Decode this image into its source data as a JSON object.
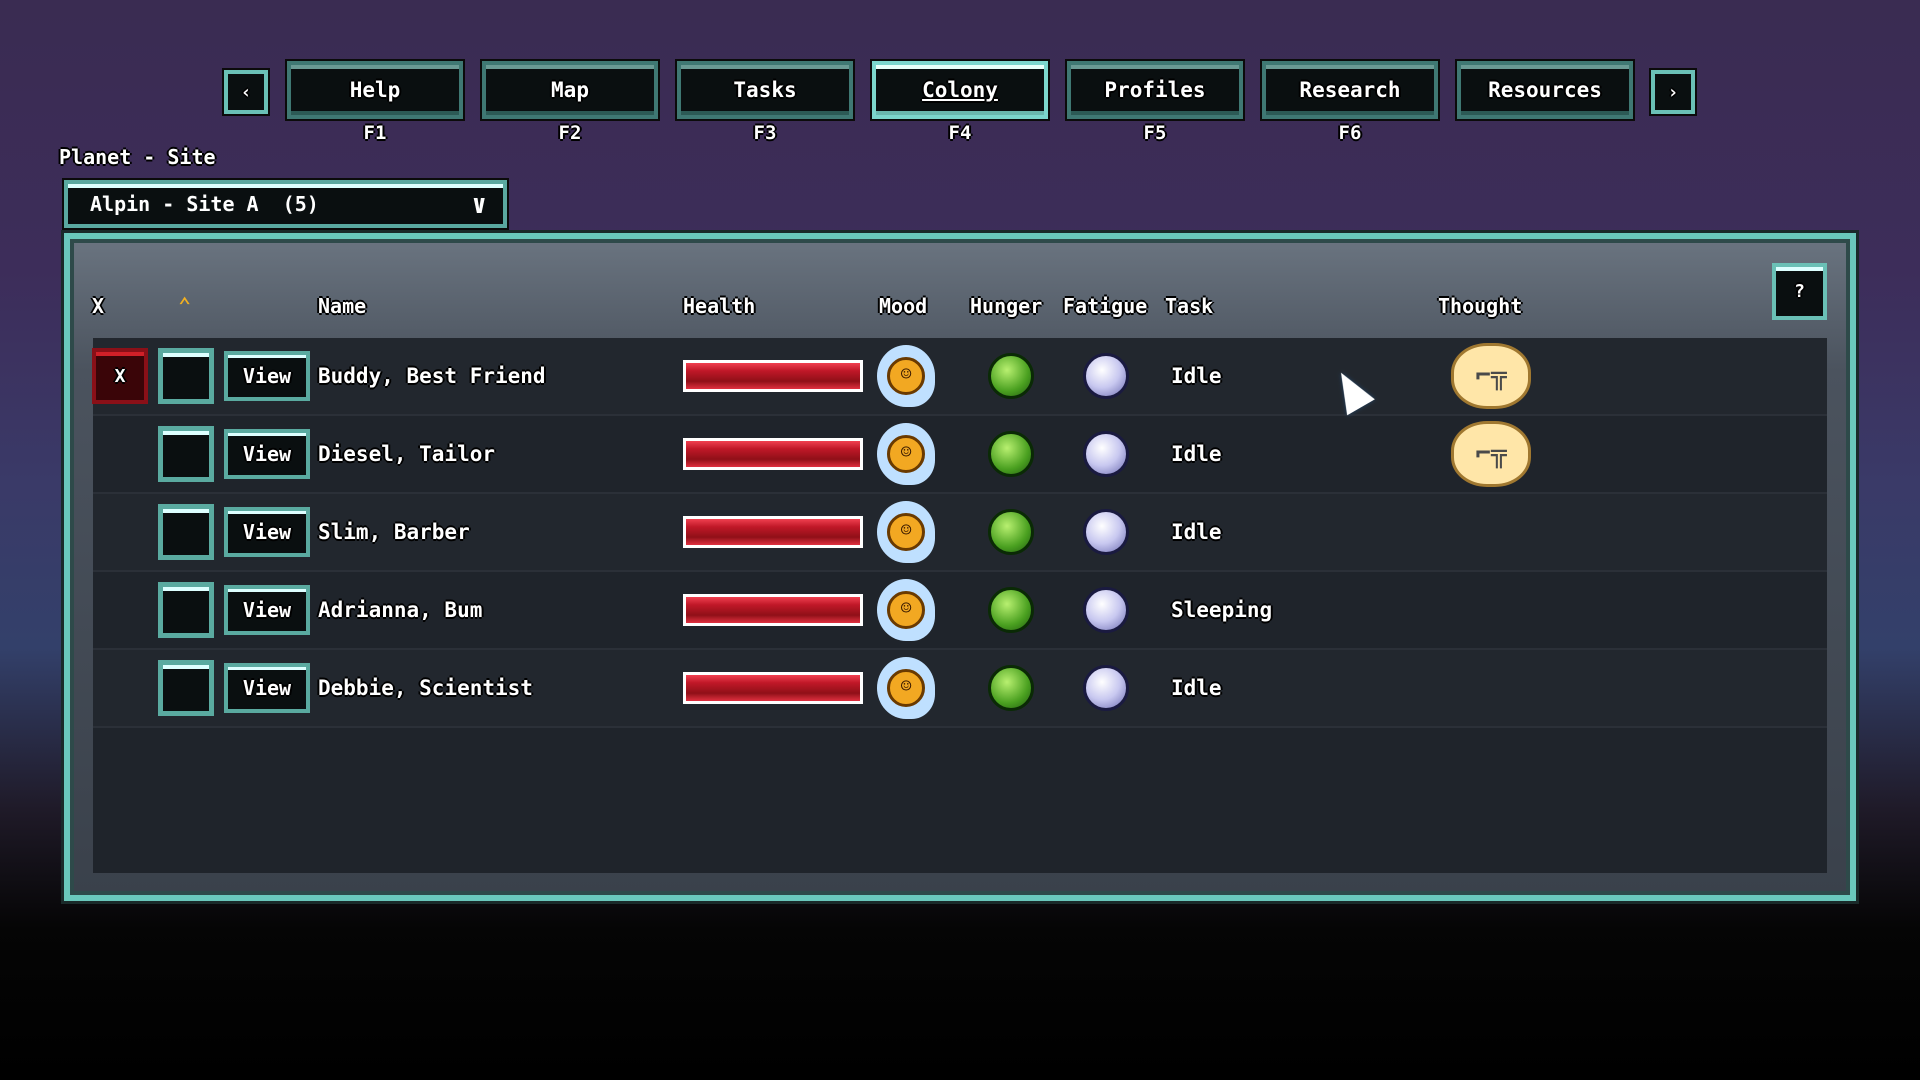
{
  "nav": {
    "prev_icon": "chevron-left-icon",
    "next_icon": "chevron-right-icon",
    "tabs": [
      {
        "label": "Help",
        "key": "F1"
      },
      {
        "label": "Map",
        "key": "F2"
      },
      {
        "label": "Tasks",
        "key": "F3"
      },
      {
        "label": "Colony",
        "key": "F4",
        "active": true
      },
      {
        "label": "Profiles",
        "key": "F5"
      },
      {
        "label": "Research",
        "key": "F6"
      },
      {
        "label": "Resources",
        "key": ""
      }
    ],
    "prev_label": "‹",
    "next_label": "›"
  },
  "site": {
    "label": "Planet - Site",
    "selected": "Alpin - Site A  (5)"
  },
  "table": {
    "help_label": "?",
    "headers": {
      "x": "X",
      "rank_icon": "rank-chevron-icon",
      "name": "Name",
      "health": "Health",
      "mood": "Mood",
      "hunger": "Hunger",
      "fatigue": "Fatigue",
      "task": "Task",
      "thought": "Thought"
    },
    "view_label": "View",
    "remove_label": "X",
    "rows": [
      {
        "name": "Buddy, Best Friend",
        "health": 1.0,
        "mood": "happy-thumbs-up",
        "task": "Idle",
        "thought": "weapon-thought",
        "removable": true
      },
      {
        "name": "Diesel, Tailor",
        "health": 1.0,
        "mood": "happy-thumbs-up",
        "task": "Idle",
        "thought": "weapon-thought"
      },
      {
        "name": "Slim, Barber",
        "health": 1.0,
        "mood": "happy-thumbs-up",
        "task": "Idle"
      },
      {
        "name": "Adrianna, Bum",
        "health": 1.0,
        "mood": "happy-thumbs-up",
        "task": "Sleeping"
      },
      {
        "name": "Debbie, Scientist",
        "health": 1.0,
        "mood": "happy-thumbs-up",
        "task": "Idle"
      }
    ]
  },
  "colors": {
    "accent": "#6ac8bc",
    "health": "#c01828",
    "panel": "#1f242b"
  }
}
